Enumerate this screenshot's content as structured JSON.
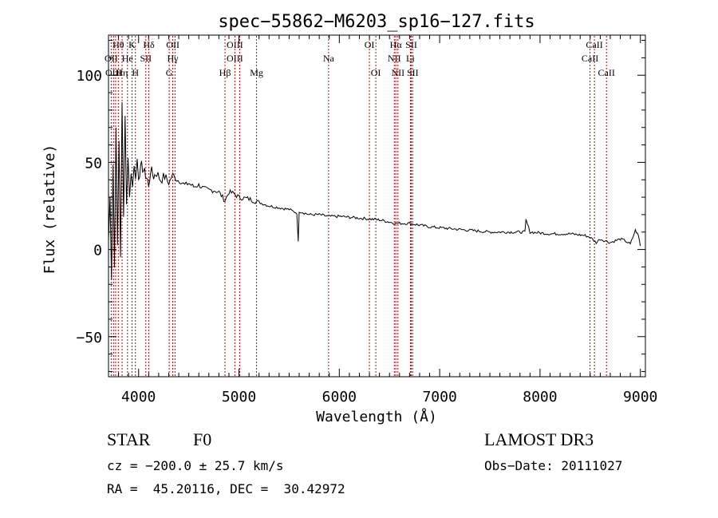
{
  "chart_data": {
    "type": "line",
    "title": "spec−55862−M6203_sp16−127.fits",
    "xlabel": "Wavelength (Å)",
    "ylabel": "Flux (relative)",
    "xlim": [
      3700,
      9050
    ],
    "ylim": [
      -73,
      123
    ],
    "xticks": [
      4000,
      5000,
      6000,
      7000,
      8000,
      9000
    ],
    "yticks": [
      -50,
      0,
      50,
      100
    ],
    "xtick_labels": [
      "4000",
      "5000",
      "6000",
      "7000",
      "8000",
      "9000"
    ],
    "ytick_labels": [
      "−50",
      "0",
      "50",
      "100"
    ],
    "series": [
      {
        "name": "spectrum",
        "x": [
          3700,
          3715,
          3730,
          3745,
          3760,
          3775,
          3790,
          3805,
          3820,
          3835,
          3850,
          3865,
          3880,
          3895,
          3910,
          3925,
          3940,
          3955,
          3970,
          3985,
          4000,
          4030,
          4060,
          4090,
          4100,
          4120,
          4150,
          4180,
          4220,
          4260,
          4300,
          4340,
          4380,
          4420,
          4460,
          4500,
          4550,
          4600,
          4650,
          4700,
          4750,
          4800,
          4861,
          4900,
          4950,
          5000,
          5100,
          5200,
          5300,
          5400,
          5500,
          5577,
          5590,
          5600,
          5700,
          5800,
          5890,
          6000,
          6200,
          6400,
          6563,
          6700,
          6900,
          7100,
          7300,
          7500,
          7700,
          7850,
          7860,
          7900,
          8100,
          8300,
          8450,
          8500,
          8560,
          8600,
          8650,
          8700,
          8800,
          8850,
          8900,
          8950,
          8980,
          9000
        ],
        "y": [
          5,
          30,
          -15,
          50,
          -10,
          70,
          5,
          60,
          -5,
          85,
          20,
          75,
          25,
          55,
          30,
          45,
          35,
          50,
          40,
          52,
          42,
          48,
          44,
          40,
          35,
          46,
          42,
          44,
          40,
          42,
          38,
          43,
          40,
          39,
          37,
          38,
          36,
          37,
          35,
          34,
          34,
          33,
          28,
          33,
          32,
          30,
          29,
          27,
          25,
          24,
          23,
          21,
          4,
          22,
          20,
          20,
          19,
          19,
          18,
          17,
          15,
          15,
          13,
          12,
          11,
          10,
          10,
          10,
          17,
          10,
          9,
          9,
          8,
          7,
          4,
          6,
          5,
          4,
          6,
          5,
          3,
          11,
          8,
          2
        ]
      }
    ],
    "lines": [
      {
        "label": "Hθ",
        "x": 3798,
        "row": 0
      },
      {
        "label": "K",
        "x": 3934,
        "row": 0
      },
      {
        "label": "Hδ",
        "x": 4102,
        "row": 0
      },
      {
        "label": "OII",
        "x": 4341,
        "row": 0
      },
      {
        "label": "OIII",
        "x": 4959,
        "row": 0
      },
      {
        "label": "OI",
        "x": 6300,
        "row": 0
      },
      {
        "label": "Hα",
        "x": 6563,
        "row": 0
      },
      {
        "label": "SII",
        "x": 6717,
        "row": 0
      },
      {
        "label": "CaII",
        "x": 8542,
        "row": 0
      },
      {
        "label": "OII",
        "x": 3727,
        "row": 1
      },
      {
        "label": "He",
        "x": 3889,
        "row": 1
      },
      {
        "label": "SII",
        "x": 4072,
        "row": 1
      },
      {
        "label": "Hγ",
        "x": 4340,
        "row": 1
      },
      {
        "label": "OIII",
        "x": 4959,
        "row": 1
      },
      {
        "label": "Na",
        "x": 5893,
        "row": 1
      },
      {
        "label": "NII",
        "x": 6548,
        "row": 1
      },
      {
        "label": "Li",
        "x": 6708,
        "row": 1
      },
      {
        "label": "CaII",
        "x": 8498,
        "row": 1
      },
      {
        "label": "OIII",
        "x": 3750,
        "row": 2
      },
      {
        "label": "Hη",
        "x": 3835,
        "row": 2
      },
      {
        "label": "H",
        "x": 3968,
        "row": 2
      },
      {
        "label": "G",
        "x": 4305,
        "row": 2
      },
      {
        "label": "Hβ",
        "x": 4861,
        "row": 2
      },
      {
        "label": "Mg",
        "x": 5175,
        "row": 2
      },
      {
        "label": "OI",
        "x": 6364,
        "row": 2
      },
      {
        "label": "NII",
        "x": 6584,
        "row": 2
      },
      {
        "label": "SII",
        "x": 6731,
        "row": 2
      },
      {
        "label": "CaII",
        "x": 8662,
        "row": 2
      }
    ],
    "line_positions": [
      3727,
      3750,
      3771,
      3798,
      3835,
      3889,
      3934,
      3968,
      4072,
      4102,
      4305,
      4340,
      4363,
      4861,
      4959,
      5007,
      5175,
      5893,
      6300,
      6364,
      6548,
      6563,
      6584,
      6708,
      6717,
      6731,
      8498,
      8542,
      8662
    ]
  },
  "footer": {
    "object_class": "STAR",
    "subclass": "F0",
    "cz": "cz = −200.0 ± 25.7 km/s",
    "radec": "RA =  45.20116, DEC =  30.42972",
    "survey": "LAMOST DR3",
    "obs_date": "Obs−Date: 20111027"
  },
  "colors": {
    "line_marker": "#cc0000",
    "spectrum": "#000000",
    "axes": "#000000"
  }
}
